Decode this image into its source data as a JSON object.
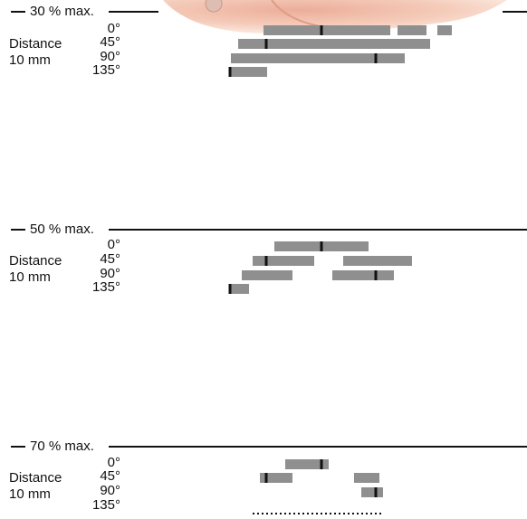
{
  "panels": [
    {
      "label": "30 % max.",
      "distance": "Distance",
      "distance_value": "10 mm",
      "angles": [
        "0°",
        "45°",
        "90°",
        "135°"
      ]
    },
    {
      "label": "50 % max.",
      "distance": "Distance",
      "distance_value": "10 mm",
      "angles": [
        "0°",
        "45°",
        "90°",
        "135°"
      ]
    },
    {
      "label": "70 % max.",
      "distance": "Distance",
      "distance_value": "10 mm",
      "angles": [
        "0°",
        "45°",
        "90°",
        "135°"
      ]
    }
  ]
}
